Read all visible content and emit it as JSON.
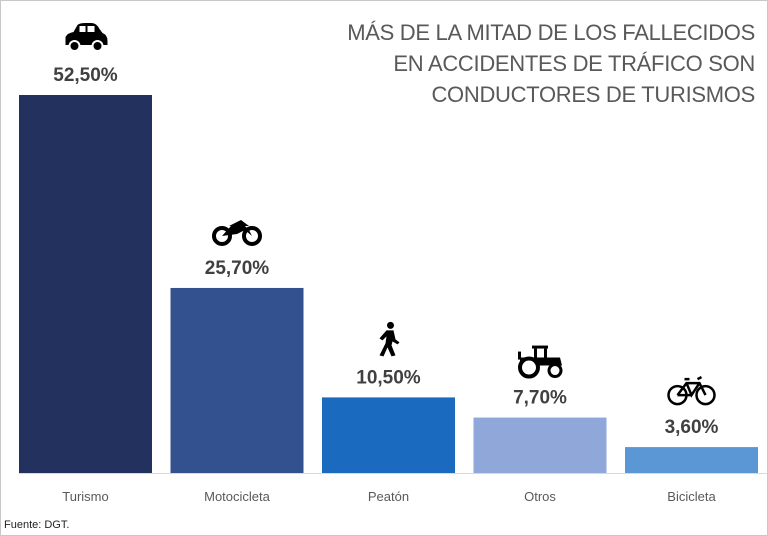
{
  "chart_data": {
    "type": "bar",
    "title": "MÁS DE LA MITAD DE LOS FALLECIDOS EN ACCIDENTES DE TRÁFICO SON CONDUCTORES DE TURISMOS",
    "categories": [
      "Turismo",
      "Motocicleta",
      "Peatón",
      "Otros",
      "Bicicleta"
    ],
    "values": [
      52.5,
      25.7,
      10.5,
      7.7,
      3.6
    ],
    "data_labels": [
      "52,50%",
      "25,70%",
      "10,50%",
      "7,70%",
      "3,60%"
    ],
    "icons": [
      "car-icon",
      "motorcycle-icon",
      "pedestrian-icon",
      "tractor-icon",
      "bicycle-icon"
    ],
    "colors": [
      "#22315e",
      "#33508f",
      "#1a6bbf",
      "#8fa7d9",
      "#5b97d5"
    ],
    "ylim": [
      0,
      52.5
    ],
    "grid": false,
    "legend": "none",
    "source": "Fuente: DGT."
  }
}
